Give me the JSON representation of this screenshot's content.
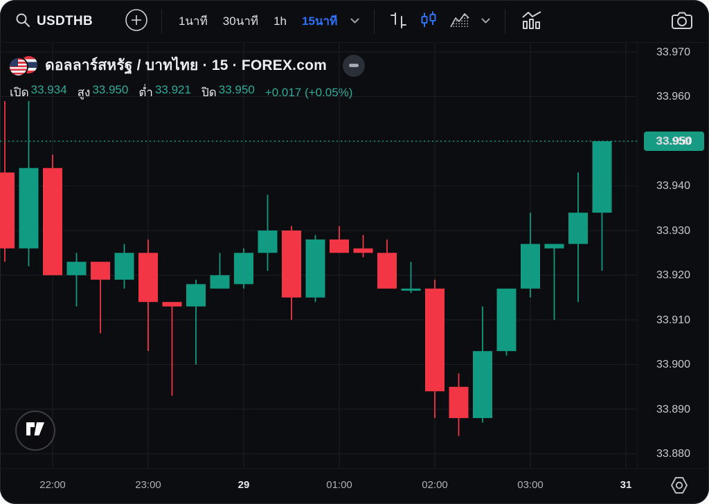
{
  "toolbar": {
    "symbol": "USDTHB",
    "timeframes": [
      {
        "label": "1นาที",
        "active": false
      },
      {
        "label": "30นาที",
        "active": false
      },
      {
        "label": "1h",
        "active": false
      },
      {
        "label": "15นาที",
        "active": true
      }
    ],
    "icons": [
      "search-icon",
      "plus-circle-icon",
      "chevron-down-icon",
      "bars-style-icon",
      "candles-style-icon",
      "area-style-icon",
      "indicators-icon",
      "camera-icon"
    ]
  },
  "legend": {
    "title": "ดอลลาร์สหรัฐ / บาทไทย · 15 · FOREX.com",
    "ohlc": {
      "open_label": "เปิด",
      "open": "33.934",
      "high_label": "สูง",
      "high": "33.950",
      "low_label": "ต่ำ",
      "low": "33.921",
      "close_label": "ปิด",
      "close": "33.950",
      "change": "+0.017 (+0.05%)"
    }
  },
  "colors": {
    "up": "#119b82",
    "down": "#f23645",
    "accent_blue": "#2d72f8",
    "value_teal": "#2bab99",
    "last_price_bg": "#179b82"
  },
  "chart_data": {
    "type": "candlestick",
    "symbol": "USDTHB",
    "title": "ดอลลาร์สหรัฐ / บาทไทย",
    "interval": "15",
    "provider": "FOREX.com",
    "last_price": "33.950",
    "last_price_value": 33.95,
    "up_color": "#119b82",
    "down_color": "#f23645",
    "ylim": [
      33.875,
      33.977
    ],
    "grid": true,
    "price_ticks": [
      "33.970",
      "33.960",
      "33.950",
      "33.940",
      "33.930",
      "33.920",
      "33.910",
      "33.900",
      "33.890",
      "33.880"
    ],
    "time_ticks": [
      {
        "label": "22:00",
        "idx": 2,
        "day": false
      },
      {
        "label": "23:00",
        "idx": 6,
        "day": false
      },
      {
        "label": "29",
        "idx": 10,
        "day": true
      },
      {
        "label": "01:00",
        "idx": 14,
        "day": false
      },
      {
        "label": "02:00",
        "idx": 18,
        "day": false
      },
      {
        "label": "03:00",
        "idx": 22,
        "day": false
      },
      {
        "label": "31",
        "idx": 26,
        "day": true
      }
    ],
    "columns": [
      "time",
      "open",
      "high",
      "low",
      "close"
    ],
    "candles": [
      [
        "21:30",
        33.943,
        33.959,
        33.923,
        33.926
      ],
      [
        "21:45",
        33.926,
        33.959,
        33.922,
        33.944
      ],
      [
        "22:00",
        33.944,
        33.947,
        33.92,
        33.92
      ],
      [
        "22:15",
        33.92,
        33.925,
        33.913,
        33.923
      ],
      [
        "22:30",
        33.923,
        33.923,
        33.907,
        33.919
      ],
      [
        "22:45",
        33.919,
        33.927,
        33.917,
        33.925
      ],
      [
        "23:00",
        33.925,
        33.928,
        33.903,
        33.914
      ],
      [
        "23:15",
        33.914,
        33.914,
        33.893,
        33.913
      ],
      [
        "23:30",
        33.913,
        33.919,
        33.9,
        33.918
      ],
      [
        "23:45",
        33.917,
        33.925,
        33.917,
        33.92
      ],
      [
        "00:00",
        33.918,
        33.926,
        33.917,
        33.925
      ],
      [
        "00:15",
        33.925,
        33.938,
        33.921,
        33.93
      ],
      [
        "00:30",
        33.93,
        33.931,
        33.91,
        33.915
      ],
      [
        "00:45",
        33.915,
        33.929,
        33.914,
        33.928
      ],
      [
        "01:00",
        33.928,
        33.931,
        33.925,
        33.925
      ],
      [
        "01:15",
        33.926,
        33.929,
        33.924,
        33.925
      ],
      [
        "01:30",
        33.925,
        33.928,
        33.917,
        33.917
      ],
      [
        "01:45",
        33.917,
        33.923,
        33.916,
        33.917
      ],
      [
        "02:00",
        33.917,
        33.919,
        33.888,
        33.894
      ],
      [
        "02:15",
        33.895,
        33.898,
        33.884,
        33.888
      ],
      [
        "02:30",
        33.888,
        33.913,
        33.887,
        33.903
      ],
      [
        "02:45",
        33.903,
        33.917,
        33.902,
        33.917
      ],
      [
        "03:00",
        33.917,
        33.934,
        33.915,
        33.927
      ],
      [
        "03:15",
        33.926,
        33.927,
        33.91,
        33.927
      ],
      [
        "03:30",
        33.927,
        33.943,
        33.914,
        33.934
      ],
      [
        "03:45",
        33.934,
        33.95,
        33.921,
        33.95
      ]
    ]
  }
}
